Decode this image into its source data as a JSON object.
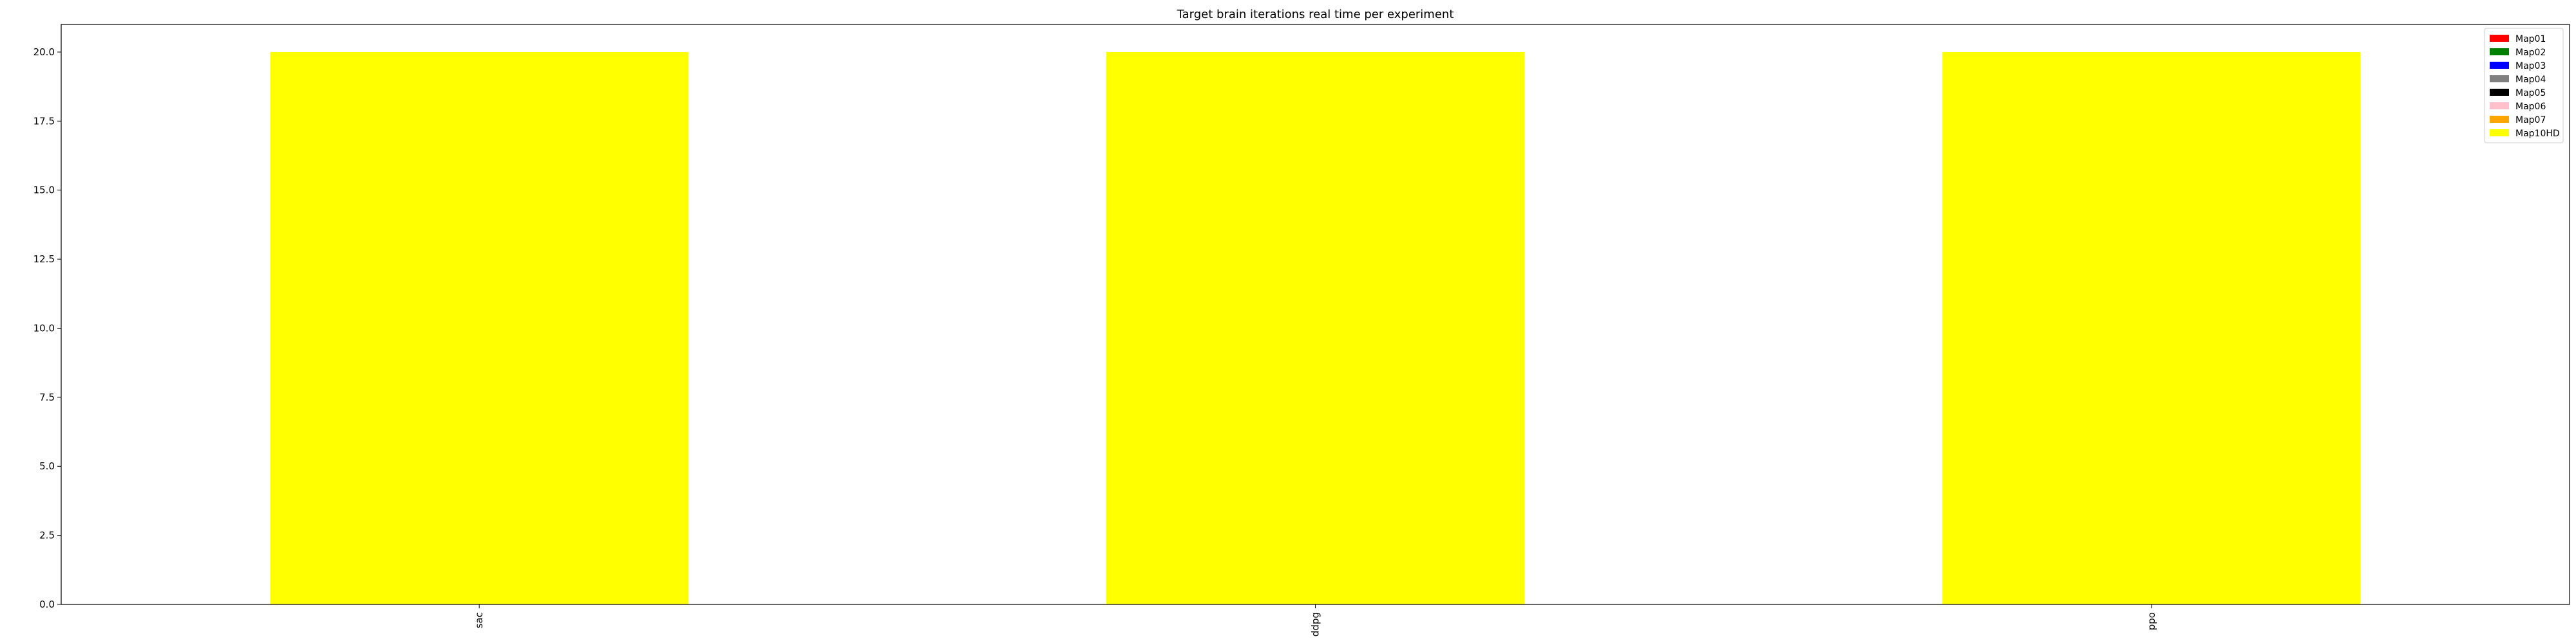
{
  "chart_data": {
    "type": "bar",
    "stacked": true,
    "title": "Target brain iterations real time per experiment",
    "xlabel": "",
    "ylabel": "",
    "categories": [
      "sac",
      "ddpg",
      "ppo"
    ],
    "series": [
      {
        "name": "Map01",
        "color": "#ff0000",
        "values": [
          0,
          0,
          0
        ]
      },
      {
        "name": "Map02",
        "color": "#008000",
        "values": [
          0,
          0,
          0
        ]
      },
      {
        "name": "Map03",
        "color": "#0000ff",
        "values": [
          0,
          0,
          0
        ]
      },
      {
        "name": "Map04",
        "color": "#808080",
        "values": [
          0,
          0,
          0
        ]
      },
      {
        "name": "Map05",
        "color": "#000000",
        "values": [
          0,
          0,
          0
        ]
      },
      {
        "name": "Map06",
        "color": "#ffc0cb",
        "values": [
          0,
          0,
          0
        ]
      },
      {
        "name": "Map07",
        "color": "#ffa500",
        "values": [
          0,
          0,
          0
        ]
      },
      {
        "name": "Map10HD",
        "color": "#ffff00",
        "values": [
          20,
          20,
          20
        ]
      }
    ],
    "ylim": [
      0,
      21
    ],
    "yticks": [
      "0.0",
      "2.5",
      "5.0",
      "7.5",
      "10.0",
      "12.5",
      "15.0",
      "17.5",
      "20.0"
    ],
    "grid": false,
    "legend_position": "top-right"
  }
}
